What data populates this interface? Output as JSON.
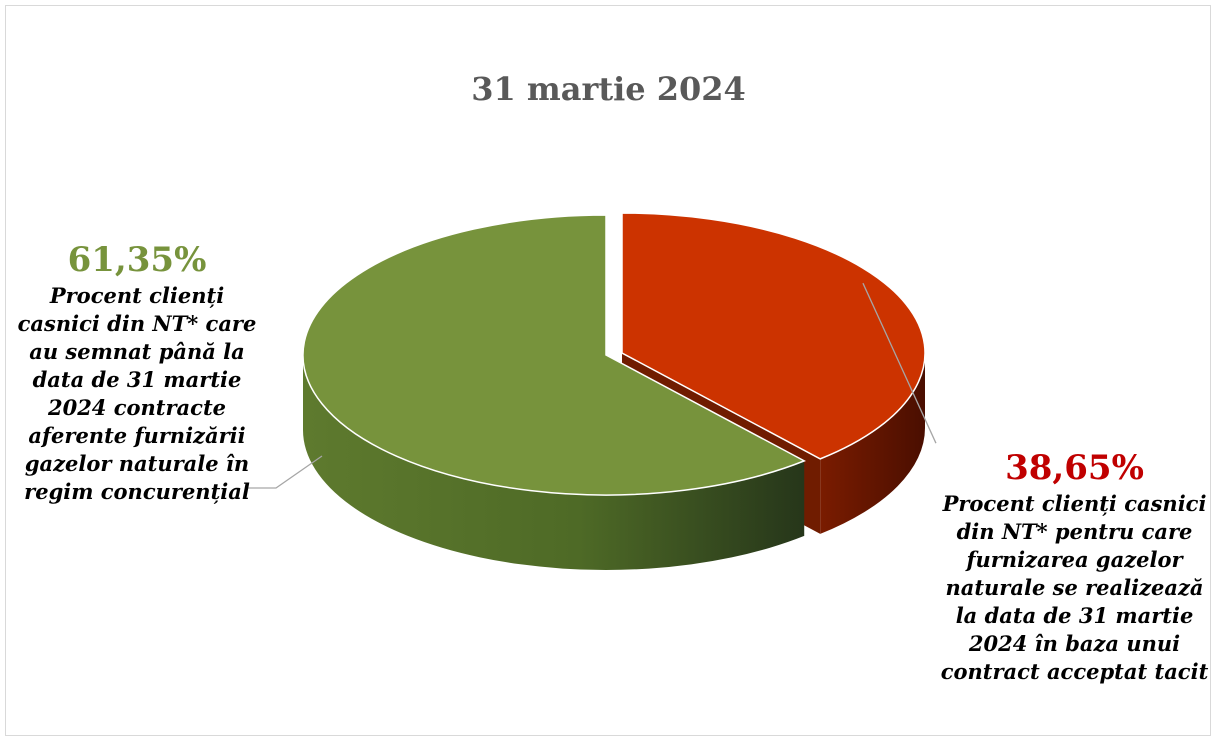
{
  "chart_data": {
    "type": "pie",
    "title": "31 martie 2024",
    "slices": [
      {
        "value": 61.35,
        "value_label": "61,35%",
        "label": "Procent clienți casnici din NT* care au semnat până la data de 31 martie 2024 contracte aferente furnizării gazelor naturale în regim concurențial",
        "color": "#77933c"
      },
      {
        "value": 38.65,
        "value_label": "38,65%",
        "label": "Procent clienți casnici din NT* pentru care furnizarea gazelor naturale se realizează la data de 31 martie 2024 în baza unui contract acceptat tacit",
        "color": "#cc3300"
      }
    ],
    "style": "3d-exploded",
    "legend": "none"
  }
}
